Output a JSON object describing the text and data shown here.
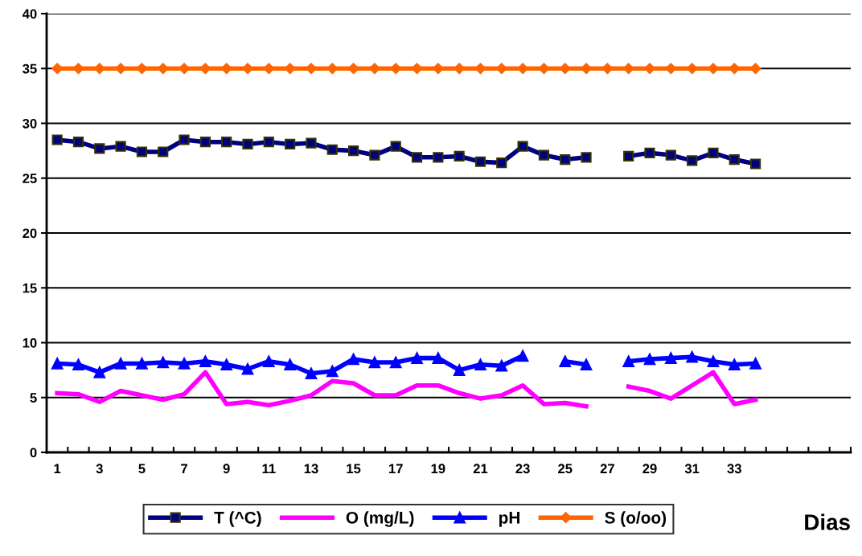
{
  "chart_data": {
    "type": "line",
    "xlabel": "Dias",
    "categories": [
      "1",
      null,
      "3",
      null,
      "5",
      null,
      "7",
      null,
      "9",
      null,
      "11",
      null,
      "13",
      null,
      "15",
      null,
      "17",
      null,
      "19",
      null,
      "21",
      null,
      "23",
      null,
      "25",
      null,
      "27",
      null,
      "29",
      null,
      "31",
      null,
      "33",
      null,
      null,
      null,
      null,
      null
    ],
    "series": [
      {
        "name": "T (^C)",
        "color": "#000080",
        "marker": "square",
        "values": [
          28.5,
          28.3,
          27.7,
          27.9,
          27.4,
          27.4,
          28.5,
          28.3,
          28.3,
          28.1,
          28.3,
          28.1,
          28.2,
          27.6,
          27.5,
          27.1,
          27.9,
          26.9,
          26.9,
          27.0,
          26.5,
          26.4,
          27.9,
          27.1,
          26.7,
          26.9,
          null,
          27.0,
          27.3,
          27.1,
          26.6,
          27.3,
          26.7,
          26.3,
          null,
          null,
          null,
          null
        ]
      },
      {
        "name": "O (mg/L)",
        "color": "#ff00ff",
        "marker": "none",
        "values": [
          5.4,
          5.3,
          4.6,
          5.6,
          5.2,
          4.8,
          5.3,
          7.3,
          4.4,
          4.6,
          4.3,
          4.7,
          5.2,
          6.5,
          6.3,
          5.2,
          5.2,
          6.1,
          6.1,
          5.4,
          4.9,
          5.2,
          6.1,
          4.4,
          4.5,
          4.2,
          null,
          6.0,
          5.6,
          4.9,
          6.1,
          7.3,
          4.4,
          4.8,
          null,
          null,
          null,
          null
        ]
      },
      {
        "name": "pH",
        "color": "#0000ff",
        "marker": "triangle",
        "values": [
          8.1,
          8.0,
          7.3,
          8.1,
          8.1,
          8.2,
          8.1,
          8.3,
          8.0,
          7.6,
          8.3,
          8.0,
          7.2,
          7.4,
          8.5,
          8.2,
          8.2,
          8.6,
          8.6,
          7.5,
          8.0,
          7.9,
          8.8,
          null,
          8.3,
          8.0,
          null,
          8.3,
          8.5,
          8.6,
          8.7,
          8.3,
          8.0,
          8.1,
          null,
          null,
          null,
          null
        ]
      },
      {
        "name": "S (o/oo)",
        "color": "#ff6600",
        "marker": "diamond",
        "values": [
          35,
          35,
          35,
          35,
          35,
          35,
          35,
          35,
          35,
          35,
          35,
          35,
          35,
          35,
          35,
          35,
          35,
          35,
          35,
          35,
          35,
          35,
          35,
          35,
          35,
          35,
          35,
          35,
          35,
          35,
          35,
          35,
          35,
          35,
          null,
          null,
          null,
          null
        ]
      }
    ],
    "ylim": [
      0,
      40
    ],
    "yticks": [
      0,
      5,
      10,
      15,
      20,
      25,
      30,
      35,
      40
    ],
    "grid": "y",
    "legend": "bottom",
    "line_style": "solid"
  }
}
